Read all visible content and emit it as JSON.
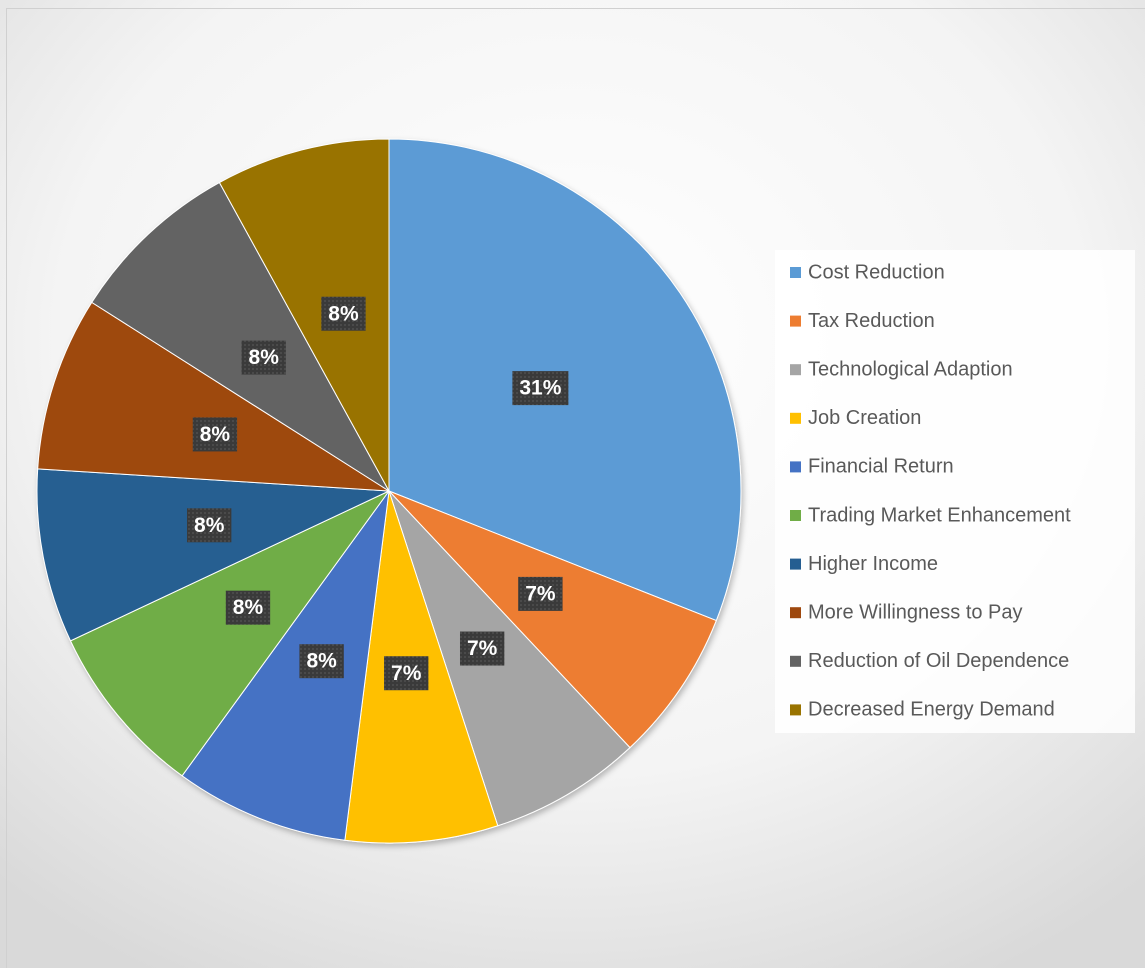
{
  "chart_data": {
    "type": "pie",
    "categories": [
      "Cost Reduction",
      "Tax Reduction",
      "Technological Adaption",
      "Job Creation",
      "Financial Return",
      "Trading Market Enhancement",
      "Higher Income",
      "More Willingness to Pay",
      "Reduction of Oil Dependence",
      "Decreased Energy Demand"
    ],
    "values": [
      31,
      7,
      7,
      7,
      8,
      8,
      8,
      8,
      8,
      8
    ],
    "value_labels": [
      "31%",
      "7%",
      "7%",
      "7%",
      "8%",
      "8%",
      "8%",
      "8%",
      "8%",
      "8%"
    ],
    "colors": [
      "#5b9bd5",
      "#ed7d31",
      "#a5a5a5",
      "#ffc000",
      "#4472c4",
      "#70ad47",
      "#255e91",
      "#9e480e",
      "#636363",
      "#997300"
    ],
    "legend": "right"
  }
}
